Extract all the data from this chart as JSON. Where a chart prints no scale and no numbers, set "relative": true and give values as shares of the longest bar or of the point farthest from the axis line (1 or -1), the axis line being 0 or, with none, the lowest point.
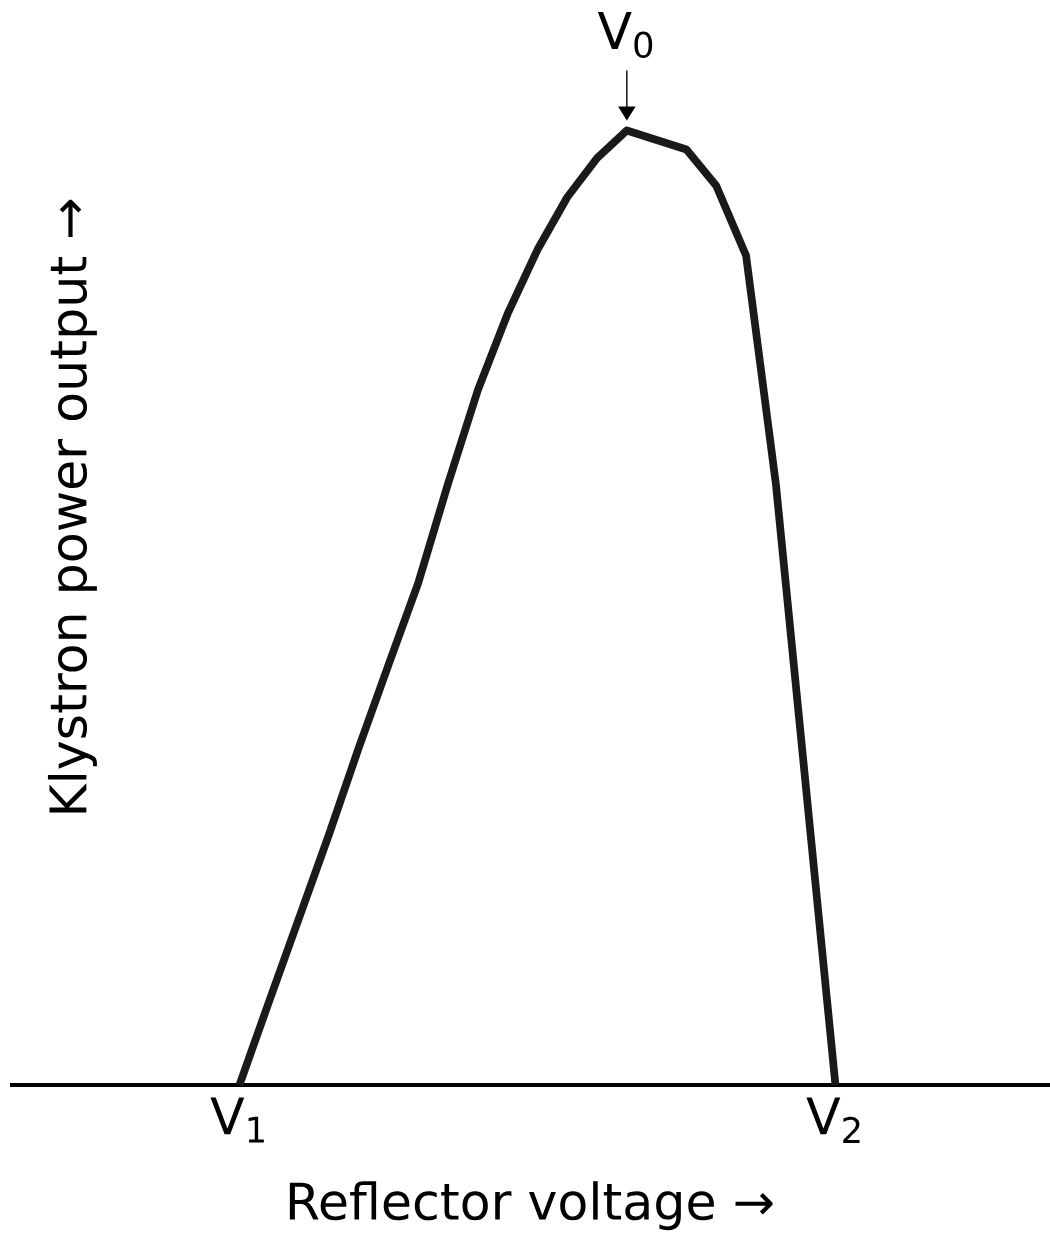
{
  "chart_data": {
    "type": "line",
    "relative": true,
    "xlabel": "Reflector voltage →",
    "ylabel": "Klystron power output →",
    "categories": [
      null,
      null,
      null,
      null,
      "V$_{1}$",
      null,
      null,
      null,
      null,
      null,
      null,
      null,
      null,
      null,
      null,
      null,
      null,
      null,
      null,
      null,
      null,
      null,
      null,
      null,
      "V$_{2}$",
      null,
      null,
      null,
      null,
      null,
      null,
      null
    ],
    "series": [
      {
        "color": "#1a1a1a",
        "values": [
          null,
          null,
          null,
          null,
          0,
          0.088,
          0.175,
          0.262,
          0.353,
          0.44,
          0.526,
          0.63,
          0.728,
          0.808,
          0.875,
          0.93,
          0.971,
          1,
          0.99,
          0.98,
          0.942,
          0.869,
          0.63,
          0.315,
          0,
          null,
          null,
          null,
          null,
          null,
          null,
          null
        ]
      }
    ],
    "annotations": [
      "V$_{0}$"
    ]
  }
}
